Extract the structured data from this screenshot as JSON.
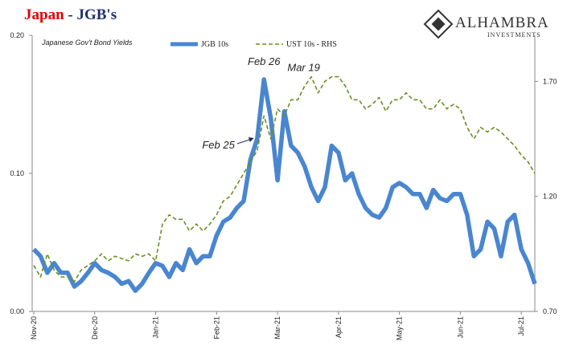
{
  "chart_data": {
    "type": "line",
    "title": "Japan",
    "title_suffix": " - JGB's",
    "subtitle": "Japanese Gov't Bond Yields",
    "logo": {
      "name": "ALHAMBRA",
      "tagline": "INVESTMENTS"
    },
    "categories": [
      "Nov-20",
      null,
      null,
      null,
      null,
      null,
      null,
      null,
      null,
      "Dec-20",
      null,
      null,
      null,
      null,
      null,
      null,
      null,
      null,
      "Jan-21",
      null,
      null,
      null,
      null,
      null,
      null,
      null,
      null,
      "Feb-21",
      null,
      null,
      null,
      null,
      null,
      null,
      null,
      null,
      "Mar-21",
      null,
      null,
      null,
      null,
      null,
      null,
      null,
      null,
      "Apr-21",
      null,
      null,
      null,
      null,
      null,
      null,
      null,
      null,
      "May-21",
      null,
      null,
      null,
      null,
      null,
      null,
      null,
      null,
      "Jun-21",
      null,
      null,
      null,
      null,
      null,
      null,
      null,
      null,
      "Jul-21",
      null,
      null
    ],
    "series": [
      {
        "name": "JGB 10s",
        "color": "#4a86d0",
        "values": [
          0.045,
          0.04,
          0.028,
          0.035,
          0.028,
          0.028,
          0.018,
          0.022,
          0.028,
          0.035,
          0.03,
          0.028,
          0.025,
          0.02,
          0.022,
          0.015,
          0.02,
          0.028,
          0.035,
          0.033,
          0.025,
          0.035,
          0.03,
          0.045,
          0.035,
          0.04,
          0.04,
          0.055,
          0.065,
          0.068,
          0.075,
          0.08,
          0.11,
          0.125,
          0.168,
          0.14,
          0.095,
          0.145,
          0.12,
          0.115,
          0.105,
          0.09,
          0.08,
          0.09,
          0.12,
          0.115,
          0.095,
          0.1,
          0.085,
          0.075,
          0.07,
          0.068,
          0.075,
          0.09,
          0.093,
          0.09,
          0.085,
          0.085,
          0.075,
          0.088,
          0.082,
          0.08,
          0.085,
          0.085,
          0.07,
          0.04,
          0.045,
          0.065,
          0.06,
          0.04,
          0.065,
          0.07,
          0.045,
          0.035,
          0.02
        ]
      },
      {
        "name": "UST 10s - RHS",
        "color": "#6b8e23",
        "axis": "y2",
        "dash": true,
        "values": [
          0.9,
          0.85,
          0.95,
          0.88,
          0.85,
          0.85,
          0.83,
          0.88,
          0.9,
          0.92,
          0.95,
          0.92,
          0.94,
          0.93,
          0.92,
          0.95,
          0.94,
          0.95,
          0.92,
          1.08,
          1.12,
          1.1,
          1.1,
          1.05,
          1.08,
          1.05,
          1.08,
          1.12,
          1.18,
          1.2,
          1.25,
          1.3,
          1.35,
          1.4,
          1.55,
          1.45,
          1.58,
          1.55,
          1.62,
          1.62,
          1.68,
          1.72,
          1.65,
          1.7,
          1.72,
          1.72,
          1.68,
          1.62,
          1.62,
          1.58,
          1.6,
          1.63,
          1.57,
          1.62,
          1.62,
          1.65,
          1.62,
          1.62,
          1.58,
          1.58,
          1.62,
          1.58,
          1.6,
          1.58,
          1.5,
          1.45,
          1.5,
          1.48,
          1.5,
          1.48,
          1.45,
          1.42,
          1.38,
          1.35,
          1.3
        ]
      }
    ],
    "ylim": [
      0,
      0.2
    ],
    "yticks": [
      {
        "value": 0,
        "label": "0.00"
      },
      {
        "value": 0.1,
        "label": "0.10"
      },
      {
        "value": 0.2,
        "label": "0.20"
      }
    ],
    "y2lim": [
      0.7,
      1.9
    ],
    "y2ticks": [
      {
        "value": 0.7,
        "label": "0.70"
      },
      {
        "value": 1.2,
        "label": "1.20"
      },
      {
        "value": 1.7,
        "label": "1.70"
      }
    ],
    "annotations": [
      {
        "text": "Feb 26",
        "index": 34
      },
      {
        "text": "Feb 25",
        "index": 33,
        "arrow": true
      },
      {
        "text": "Mar 19",
        "index": 42
      }
    ]
  }
}
